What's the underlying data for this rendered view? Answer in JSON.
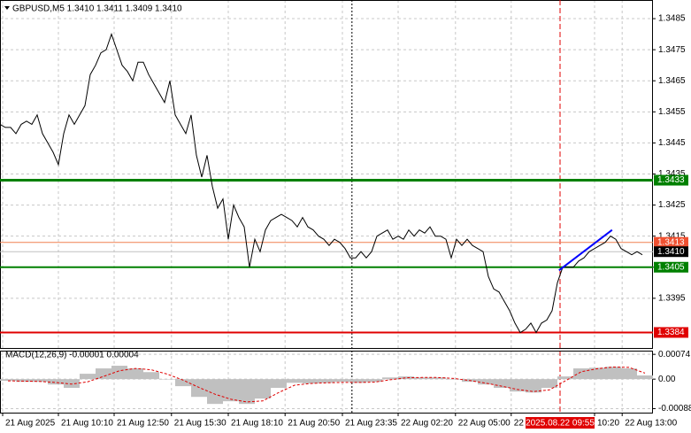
{
  "chart_data": [
    {
      "type": "line",
      "title": "GBPUSD,M5  1.3410 1.3411 1.3409 1.3410",
      "color": "#000000",
      "x": [
        0,
        1,
        2,
        3,
        4,
        5,
        6,
        7,
        8,
        9,
        10,
        11,
        12,
        13,
        14,
        15,
        16,
        17,
        18,
        19,
        20,
        21,
        22,
        23,
        24,
        25,
        26,
        27,
        28,
        29,
        30,
        31,
        32,
        33,
        34,
        35,
        36,
        37,
        38,
        39,
        40,
        41,
        42,
        43,
        44,
        45,
        46,
        47,
        48,
        49,
        50,
        51,
        52,
        53,
        54,
        55,
        56,
        57,
        58,
        59,
        60,
        61,
        62,
        63,
        64,
        65,
        66,
        67,
        68,
        69,
        70,
        71,
        72,
        73,
        74,
        75,
        76,
        77,
        78,
        79,
        80,
        81,
        82,
        83,
        84,
        85,
        86,
        87,
        88,
        89,
        90,
        91,
        92,
        93,
        94,
        95,
        96,
        97,
        98,
        99,
        100,
        101,
        102,
        103,
        104,
        105,
        106,
        107,
        108,
        109,
        110,
        111,
        112,
        113,
        114,
        115,
        116,
        117,
        118,
        119,
        120,
        121
      ],
      "values": [
        1.3451,
        1.345,
        1.345,
        1.3448,
        1.3451,
        1.3452,
        1.3451,
        1.3454,
        1.3448,
        1.3445,
        1.3442,
        1.3438,
        1.3448,
        1.3454,
        1.3451,
        1.3454,
        1.3457,
        1.3467,
        1.347,
        1.3474,
        1.3475,
        1.348,
        1.3475,
        1.347,
        1.3468,
        1.3465,
        1.3471,
        1.3471,
        1.3467,
        1.3464,
        1.3461,
        1.3458,
        1.3465,
        1.3454,
        1.3451,
        1.3448,
        1.3454,
        1.3441,
        1.3434,
        1.3441,
        1.3431,
        1.3424,
        1.3427,
        1.3414,
        1.3425,
        1.3421,
        1.3418,
        1.3405,
        1.3414,
        1.341,
        1.3417,
        1.342,
        1.3421,
        1.3422,
        1.3421,
        1.342,
        1.3418,
        1.3421,
        1.3418,
        1.3417,
        1.3415,
        1.3414,
        1.3412,
        1.3414,
        1.3413,
        1.3411,
        1.3408,
        1.3408,
        1.341,
        1.3408,
        1.341,
        1.3415,
        1.3416,
        1.3417,
        1.3414,
        1.3415,
        1.3414,
        1.3417,
        1.3415,
        1.3417,
        1.3416,
        1.3418,
        1.3415,
        1.3415,
        1.3414,
        1.3408,
        1.3414,
        1.3412,
        1.3414,
        1.3412,
        1.3411,
        1.341,
        1.3402,
        1.3398,
        1.3397,
        1.3394,
        1.3391,
        1.3387,
        1.3384,
        1.3385,
        1.3387,
        1.3384,
        1.3387,
        1.3388,
        1.3391,
        1.34,
        1.3405,
        1.3405,
        1.3405,
        1.3407,
        1.3408,
        1.341,
        1.3411,
        1.3412,
        1.3413,
        1.3415,
        1.3414,
        1.3411,
        1.341,
        1.3409,
        1.341,
        1.3409
      ],
      "xlim": [
        0,
        123
      ],
      "ylim": [
        1.3379,
        1.3491
      ],
      "yticks": [
        1.3485,
        1.3475,
        1.3465,
        1.3455,
        1.3445,
        1.3435,
        1.3425,
        1.3415,
        1.3405,
        1.3395
      ],
      "xticks": [
        {
          "value": 0.5,
          "label": "21 Aug 2025"
        },
        {
          "value": 11,
          "label": "21 Aug 10:10"
        },
        {
          "value": 21.5,
          "label": "21 Aug 12:50"
        },
        {
          "value": 32.3,
          "label": "21 Aug 15:30"
        },
        {
          "value": 43,
          "label": "21 Aug 18:10"
        },
        {
          "value": 53.7,
          "label": "21 Aug 20:50"
        },
        {
          "value": 64.5,
          "label": "21 Aug 23:35"
        },
        {
          "value": 75,
          "label": "22 Aug 02:20"
        },
        {
          "value": 85.8,
          "label": "22 Aug 05:00"
        },
        {
          "value": 96.3,
          "label": "22"
        },
        {
          "value": 112,
          "label": "10:20"
        },
        {
          "value": 117.2,
          "label": "22 Aug 13:00"
        }
      ],
      "grid": true,
      "hlines": [
        {
          "value": 1.3433,
          "color": "#008000",
          "label_color": "#008000",
          "style": "thick"
        },
        {
          "value": 1.3405,
          "color": "#008000",
          "label_color": "#008000",
          "style": "mid"
        },
        {
          "value": 1.3384,
          "color": "#e00000",
          "label_color": "#e00000",
          "style": "mid"
        },
        {
          "value": 1.3413,
          "color": "#f08050",
          "label_color": "#f05030",
          "style": "thin"
        },
        {
          "value": 1.341,
          "label": "1.3410",
          "color": "#c0c0c0",
          "label_color": "#000000",
          "style": "thin"
        }
      ],
      "separator": {
        "x": 66.3,
        "color": "#000000"
      },
      "crosshair": {
        "x": 105.5,
        "label": "2025.08.22 09:55",
        "color": "#e00000"
      },
      "trendline": {
        "x": [
          105.3,
          115.3
        ],
        "y": [
          1.3404,
          1.3417
        ],
        "color": "#0000ff"
      }
    },
    {
      "type": "macd",
      "title": "MACD(12,26,9) -0.00001 0.00004",
      "color": "#c0c0c0",
      "signal_color": "#e00000",
      "x": [
        0,
        3,
        6,
        9,
        12,
        15,
        18,
        21,
        24,
        27,
        30,
        33,
        36,
        39,
        42,
        45,
        48,
        51,
        54,
        57,
        60,
        63,
        66,
        69,
        72,
        75,
        78,
        81,
        84,
        87,
        90,
        93,
        96,
        99,
        102,
        105,
        108,
        111,
        114,
        117,
        120
      ],
      "values": [
        -5e-05,
        -8e-05,
        -8e-05,
        -0.00016,
        -0.00026,
        0.00016,
        0.00032,
        0.0004,
        0.00032,
        0.00021,
        0,
        -0.00021,
        -0.00053,
        -0.00074,
        -0.00066,
        -0.00074,
        -0.00058,
        -0.00026,
        -0.00011,
        -0.00013,
        -0.00011,
        -8e-05,
        -0.00011,
        -8e-05,
        5e-05,
        8e-05,
        5e-05,
        5e-05,
        0,
        -8e-05,
        -0.00016,
        -0.00026,
        -0.00037,
        -0.0004,
        -0.00026,
        8e-05,
        0.00032,
        0.00034,
        0.00037,
        0.00032,
        0.00011
      ],
      "signal": [
        -5e-05,
        -6e-05,
        -7e-05,
        -0.0001,
        -0.00015,
        -8e-05,
        8e-05,
        0.00025,
        0.00032,
        0.00028,
        0.00015,
        -3e-05,
        -0.00025,
        -0.00045,
        -0.0006,
        -0.00068,
        -0.00065,
        -0.0004,
        -0.00018,
        -0.00013,
        -0.00011,
        -0.0001,
        -0.0001,
        -9e-05,
        -2e-05,
        4e-05,
        5e-05,
        5e-05,
        2e-05,
        -4e-05,
        -0.00012,
        -0.00021,
        -0.00031,
        -0.00037,
        -0.00032,
        -5e-05,
        0.00022,
        0.00031,
        0.00036,
        0.00035,
        0.00018
      ],
      "xlim": [
        0,
        123
      ],
      "ylim": [
        -0.001,
        0.00085
      ],
      "yticks": [
        0.00074,
        {
          "value": 0,
          "label": "0.00"
        },
        -0.00088
      ]
    }
  ]
}
